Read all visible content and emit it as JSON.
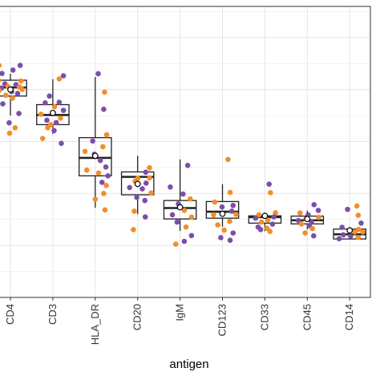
{
  "chart_data": {
    "type": "box",
    "xlabel": "antigen",
    "ylabel": "",
    "title": "",
    "grid": true,
    "colors": {
      "orange": "#f28e2b",
      "purple": "#7b4fa8",
      "box": "#222222",
      "grid": "#e6e6e6",
      "panel_border": "#333333"
    },
    "categories": [
      "CD4",
      "CD3",
      "HLA_DR",
      "CD20",
      "IgM",
      "CD123",
      "CD33",
      "CD45",
      "CD14"
    ],
    "ylim": [
      0,
      1.12
    ],
    "boxes": [
      {
        "q1": 0.775,
        "median": 0.808,
        "q3": 0.836,
        "whisker_low": 0.7,
        "whisker_high": 0.861,
        "mean": 0.8
      },
      {
        "q1": 0.665,
        "median": 0.702,
        "q3": 0.742,
        "whisker_low": 0.63,
        "whisker_high": 0.84,
        "mean": 0.71
      },
      {
        "q1": 0.468,
        "median": 0.537,
        "q3": 0.615,
        "whisker_low": 0.345,
        "whisker_high": 0.848,
        "mean": 0.545
      },
      {
        "q1": 0.395,
        "median": 0.464,
        "q3": 0.483,
        "whisker_low": 0.32,
        "whisker_high": 0.545,
        "mean": 0.437
      },
      {
        "q1": 0.302,
        "median": 0.344,
        "q3": 0.373,
        "whisker_low": 0.256,
        "whisker_high": 0.531,
        "mean": 0.347
      },
      {
        "q1": 0.305,
        "median": 0.33,
        "q3": 0.369,
        "whisker_low": 0.272,
        "whisker_high": 0.436,
        "mean": 0.322
      },
      {
        "q1": 0.286,
        "median": 0.309,
        "q3": 0.314,
        "whisker_low": 0.255,
        "whisker_high": 0.327,
        "mean": 0.314
      },
      {
        "q1": 0.283,
        "median": 0.297,
        "q3": 0.313,
        "whisker_low": 0.262,
        "whisker_high": 0.334,
        "mean": 0.302
      },
      {
        "q1": 0.225,
        "median": 0.243,
        "q3": 0.263,
        "whisker_low": 0.225,
        "whisker_high": 0.271,
        "mean": 0.258
      }
    ],
    "points": [
      [
        {
          "x": -0.27,
          "y": 0.893,
          "c": "orange"
        },
        {
          "x": 0.23,
          "y": 0.893,
          "c": "purple"
        },
        {
          "x": 0.06,
          "y": 0.875,
          "c": "purple"
        },
        {
          "x": -0.2,
          "y": 0.862,
          "c": "purple"
        },
        {
          "x": -0.28,
          "y": 0.835,
          "c": "orange"
        },
        {
          "x": 0.25,
          "y": 0.833,
          "c": "orange"
        },
        {
          "x": -0.13,
          "y": 0.822,
          "c": "purple"
        },
        {
          "x": 0.13,
          "y": 0.819,
          "c": "purple"
        },
        {
          "x": -0.06,
          "y": 0.812,
          "c": "orange"
        },
        {
          "x": 0.21,
          "y": 0.81,
          "c": "orange"
        },
        {
          "x": -0.21,
          "y": 0.806,
          "c": "purple"
        },
        {
          "x": 0.28,
          "y": 0.801,
          "c": "orange"
        },
        {
          "x": -0.27,
          "y": 0.796,
          "c": "orange"
        },
        {
          "x": 0.03,
          "y": 0.792,
          "c": "purple"
        },
        {
          "x": 0.17,
          "y": 0.785,
          "c": "purple"
        },
        {
          "x": -0.11,
          "y": 0.778,
          "c": "orange"
        },
        {
          "x": 0.05,
          "y": 0.767,
          "c": "orange"
        },
        {
          "x": -0.18,
          "y": 0.745,
          "c": "purple"
        },
        {
          "x": 0.2,
          "y": 0.708,
          "c": "purple"
        },
        {
          "x": -0.03,
          "y": 0.672,
          "c": "purple"
        },
        {
          "x": 0.11,
          "y": 0.653,
          "c": "orange"
        },
        {
          "x": -0.02,
          "y": 0.632,
          "c": "orange"
        }
      ],
      [
        {
          "x": 0.25,
          "y": 0.853,
          "c": "purple"
        },
        {
          "x": 0.15,
          "y": 0.841,
          "c": "orange"
        },
        {
          "x": -0.08,
          "y": 0.775,
          "c": "purple"
        },
        {
          "x": 0.15,
          "y": 0.751,
          "c": "purple"
        },
        {
          "x": -0.18,
          "y": 0.749,
          "c": "purple"
        },
        {
          "x": 0.04,
          "y": 0.734,
          "c": "orange"
        },
        {
          "x": 0.25,
          "y": 0.72,
          "c": "purple"
        },
        {
          "x": -0.28,
          "y": 0.705,
          "c": "orange"
        },
        {
          "x": 0.18,
          "y": 0.69,
          "c": "orange"
        },
        {
          "x": -0.14,
          "y": 0.682,
          "c": "purple"
        },
        {
          "x": 0.08,
          "y": 0.673,
          "c": "purple"
        },
        {
          "x": -0.05,
          "y": 0.665,
          "c": "orange"
        },
        {
          "x": -0.12,
          "y": 0.653,
          "c": "orange"
        },
        {
          "x": 0.03,
          "y": 0.642,
          "c": "purple"
        },
        {
          "x": -0.24,
          "y": 0.612,
          "c": "orange"
        },
        {
          "x": 0.2,
          "y": 0.593,
          "c": "purple"
        }
      ],
      [
        {
          "x": 0.07,
          "y": 0.861,
          "c": "purple"
        },
        {
          "x": 0.22,
          "y": 0.79,
          "c": "orange"
        },
        {
          "x": 0.2,
          "y": 0.724,
          "c": "purple"
        },
        {
          "x": 0.27,
          "y": 0.626,
          "c": "orange"
        },
        {
          "x": -0.06,
          "y": 0.602,
          "c": "purple"
        },
        {
          "x": 0.18,
          "y": 0.58,
          "c": "orange"
        },
        {
          "x": -0.24,
          "y": 0.562,
          "c": "orange"
        },
        {
          "x": -0.02,
          "y": 0.551,
          "c": "purple"
        },
        {
          "x": 0.12,
          "y": 0.527,
          "c": "purple"
        },
        {
          "x": 0.25,
          "y": 0.502,
          "c": "purple"
        },
        {
          "x": -0.2,
          "y": 0.49,
          "c": "orange"
        },
        {
          "x": 0.08,
          "y": 0.479,
          "c": "orange"
        },
        {
          "x": 0.3,
          "y": 0.468,
          "c": "purple"
        },
        {
          "x": 0.16,
          "y": 0.443,
          "c": "purple"
        },
        {
          "x": 0.26,
          "y": 0.431,
          "c": "orange"
        },
        {
          "x": 0.2,
          "y": 0.4,
          "c": "orange"
        },
        {
          "x": 0.0,
          "y": 0.378,
          "c": "orange"
        },
        {
          "x": 0.23,
          "y": 0.337,
          "c": "orange"
        }
      ],
      [
        {
          "x": 0.28,
          "y": 0.499,
          "c": "orange"
        },
        {
          "x": 0.19,
          "y": 0.482,
          "c": "purple"
        },
        {
          "x": 0.28,
          "y": 0.46,
          "c": "orange"
        },
        {
          "x": -0.06,
          "y": 0.447,
          "c": "orange"
        },
        {
          "x": 0.2,
          "y": 0.44,
          "c": "purple"
        },
        {
          "x": -0.19,
          "y": 0.423,
          "c": "purple"
        },
        {
          "x": 0.11,
          "y": 0.418,
          "c": "purple"
        },
        {
          "x": 0.32,
          "y": 0.402,
          "c": "orange"
        },
        {
          "x": -0.02,
          "y": 0.385,
          "c": "purple"
        },
        {
          "x": 0.17,
          "y": 0.373,
          "c": "purple"
        },
        {
          "x": -0.08,
          "y": 0.332,
          "c": "orange"
        },
        {
          "x": 0.18,
          "y": 0.31,
          "c": "purple"
        },
        {
          "x": -0.1,
          "y": 0.261,
          "c": "orange"
        },
        {
          "x": 0.0,
          "y": 0.458,
          "c": "orange"
        }
      ],
      [
        {
          "x": 0.18,
          "y": 0.508,
          "c": "purple"
        },
        {
          "x": -0.23,
          "y": 0.425,
          "c": "purple"
        },
        {
          "x": 0.07,
          "y": 0.398,
          "c": "purple"
        },
        {
          "x": 0.24,
          "y": 0.379,
          "c": "orange"
        },
        {
          "x": -0.04,
          "y": 0.36,
          "c": "purple"
        },
        {
          "x": 0.1,
          "y": 0.335,
          "c": "orange"
        },
        {
          "x": -0.18,
          "y": 0.318,
          "c": "purple"
        },
        {
          "x": 0.27,
          "y": 0.309,
          "c": "orange"
        },
        {
          "x": -0.07,
          "y": 0.29,
          "c": "purple"
        },
        {
          "x": 0.14,
          "y": 0.271,
          "c": "orange"
        },
        {
          "x": 0.27,
          "y": 0.238,
          "c": "purple"
        },
        {
          "x": 0.1,
          "y": 0.216,
          "c": "purple"
        },
        {
          "x": -0.1,
          "y": 0.205,
          "c": "orange"
        }
      ],
      [
        {
          "x": 0.13,
          "y": 0.531,
          "c": "orange"
        },
        {
          "x": 0.18,
          "y": 0.404,
          "c": "orange"
        },
        {
          "x": -0.18,
          "y": 0.367,
          "c": "orange"
        },
        {
          "x": 0.25,
          "y": 0.354,
          "c": "purple"
        },
        {
          "x": -0.01,
          "y": 0.348,
          "c": "purple"
        },
        {
          "x": 0.22,
          "y": 0.332,
          "c": "purple"
        },
        {
          "x": -0.21,
          "y": 0.318,
          "c": "orange"
        },
        {
          "x": 0.17,
          "y": 0.293,
          "c": "orange"
        },
        {
          "x": -0.11,
          "y": 0.279,
          "c": "orange"
        },
        {
          "x": 0.04,
          "y": 0.259,
          "c": "orange"
        },
        {
          "x": 0.25,
          "y": 0.248,
          "c": "purple"
        },
        {
          "x": -0.04,
          "y": 0.23,
          "c": "purple"
        },
        {
          "x": 0.18,
          "y": 0.22,
          "c": "purple"
        },
        {
          "x": 0.32,
          "y": 0.32,
          "c": "orange"
        }
      ],
      [
        {
          "x": 0.1,
          "y": 0.436,
          "c": "purple"
        },
        {
          "x": 0.13,
          "y": 0.403,
          "c": "orange"
        },
        {
          "x": 0.25,
          "y": 0.326,
          "c": "orange"
        },
        {
          "x": -0.14,
          "y": 0.318,
          "c": "orange"
        },
        {
          "x": 0.0,
          "y": 0.313,
          "c": "purple"
        },
        {
          "x": 0.21,
          "y": 0.31,
          "c": "purple"
        },
        {
          "x": -0.22,
          "y": 0.305,
          "c": "purple"
        },
        {
          "x": 0.07,
          "y": 0.298,
          "c": "orange"
        },
        {
          "x": -0.08,
          "y": 0.29,
          "c": "orange"
        },
        {
          "x": 0.18,
          "y": 0.282,
          "c": "purple"
        },
        {
          "x": -0.16,
          "y": 0.271,
          "c": "purple"
        },
        {
          "x": 0.05,
          "y": 0.266,
          "c": "orange"
        },
        {
          "x": -0.1,
          "y": 0.261,
          "c": "purple"
        },
        {
          "x": 0.12,
          "y": 0.254,
          "c": "orange"
        }
      ],
      [
        {
          "x": 0.16,
          "y": 0.357,
          "c": "purple"
        },
        {
          "x": 0.26,
          "y": 0.335,
          "c": "purple"
        },
        {
          "x": -0.17,
          "y": 0.325,
          "c": "orange"
        },
        {
          "x": 0.02,
          "y": 0.318,
          "c": "purple"
        },
        {
          "x": 0.27,
          "y": 0.308,
          "c": "orange"
        },
        {
          "x": -0.03,
          "y": 0.302,
          "c": "orange"
        },
        {
          "x": -0.21,
          "y": 0.296,
          "c": "purple"
        },
        {
          "x": 0.1,
          "y": 0.292,
          "c": "purple"
        },
        {
          "x": -0.14,
          "y": 0.283,
          "c": "orange"
        },
        {
          "x": 0.05,
          "y": 0.276,
          "c": "purple"
        },
        {
          "x": 0.12,
          "y": 0.265,
          "c": "orange"
        },
        {
          "x": -0.05,
          "y": 0.248,
          "c": "orange"
        },
        {
          "x": 0.15,
          "y": 0.237,
          "c": "purple"
        }
      ],
      [
        {
          "x": 0.17,
          "y": 0.352,
          "c": "orange"
        },
        {
          "x": -0.05,
          "y": 0.339,
          "c": "purple"
        },
        {
          "x": 0.2,
          "y": 0.316,
          "c": "orange"
        },
        {
          "x": 0.27,
          "y": 0.286,
          "c": "purple"
        },
        {
          "x": -0.18,
          "y": 0.27,
          "c": "purple"
        },
        {
          "x": 0.21,
          "y": 0.262,
          "c": "orange"
        },
        {
          "x": 0.12,
          "y": 0.252,
          "c": "orange"
        },
        {
          "x": -0.15,
          "y": 0.241,
          "c": "purple"
        },
        {
          "x": 0.02,
          "y": 0.236,
          "c": "purple"
        },
        {
          "x": 0.2,
          "y": 0.231,
          "c": "orange"
        },
        {
          "x": -0.25,
          "y": 0.226,
          "c": "purple"
        },
        {
          "x": 0.31,
          "y": 0.252,
          "c": "orange"
        }
      ]
    ]
  }
}
